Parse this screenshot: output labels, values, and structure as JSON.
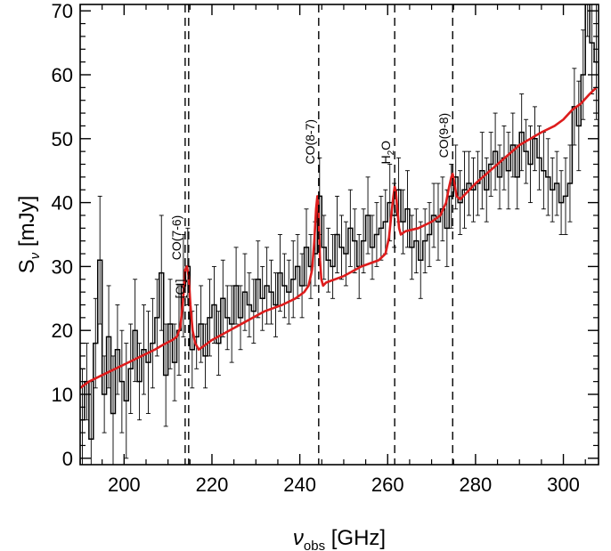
{
  "chart_data": {
    "type": "line",
    "title": "",
    "xlabel": {
      "symbol": "ν",
      "subscript": "obs",
      "unit": " [GHz]"
    },
    "ylabel": {
      "symbol": "S",
      "subscript": "ν",
      "unit": " [mJy]"
    },
    "xlim": [
      190,
      308
    ],
    "ylim": [
      -1,
      71
    ],
    "xticks": [
      200,
      220,
      240,
      260,
      280,
      300
    ],
    "yticks": [
      0,
      10,
      20,
      30,
      40,
      50,
      60,
      70
    ],
    "grid": false,
    "legend": "none",
    "colors": {
      "model": "#dd1c1c",
      "data": "#000000"
    },
    "line_markers": [
      {
        "name": "CO(7-6)",
        "main": "CO(7-6)",
        "sub": "",
        "tail": "",
        "x": 213.9,
        "label_y": 31
      },
      {
        "name": "[CI]",
        "main": "[CI]",
        "sub": "",
        "tail": "",
        "x": 214.7,
        "label_y": 25
      },
      {
        "name": "CO(8-7)",
        "main": "CO(8-7)",
        "sub": "",
        "tail": "",
        "x": 244.3,
        "label_y": 46
      },
      {
        "name": "H2O",
        "main": "H",
        "sub": "2",
        "tail": "O",
        "x": 261.6,
        "label_y": 46
      },
      {
        "name": "CO(9-8)",
        "main": "CO(9-8)",
        "sub": "",
        "tail": "",
        "x": 274.8,
        "label_y": 47
      }
    ],
    "series": [
      {
        "kind": "model",
        "x": [
          190,
          192,
          195,
          198,
          201,
          204,
          207,
          209,
          211,
          212,
          212.8,
          213.4,
          213.9,
          214.3,
          214.7,
          215.1,
          215.6,
          216.2,
          217,
          220,
          224,
          228,
          232,
          236,
          239,
          241,
          242,
          242.8,
          243.3,
          243.7,
          244.0,
          244.3,
          244.6,
          244.9,
          245.3,
          246,
          250,
          254,
          258,
          259.5,
          260.3,
          260.9,
          261.3,
          261.6,
          261.9,
          262.2,
          262.6,
          263,
          264,
          267,
          270,
          272,
          273.3,
          274,
          274.5,
          274.8,
          275.2,
          275.7,
          276.5,
          280,
          285,
          290,
          295,
          298,
          300,
          302,
          304,
          306,
          307.5
        ],
        "y": [
          11.0,
          12.0,
          13.0,
          14.0,
          15.0,
          16.0,
          17.0,
          17.8,
          18.5,
          19.0,
          20.5,
          24.5,
          29.5,
          30.0,
          28.5,
          24.0,
          20.0,
          18.0,
          17.0,
          18.5,
          20.0,
          21.5,
          23.0,
          24.0,
          25.0,
          26.0,
          27.0,
          29.5,
          34.0,
          39.0,
          41.0,
          38.0,
          31.0,
          28.0,
          27.0,
          27.5,
          28.5,
          30.0,
          31.0,
          32.0,
          34.5,
          38.5,
          41.0,
          42.5,
          41.5,
          39.0,
          36.0,
          35.0,
          35.5,
          36.0,
          37.0,
          38.0,
          40.0,
          42.5,
          44.0,
          44.5,
          43.0,
          41.0,
          40.5,
          43.0,
          46.0,
          49.0,
          51.0,
          52.0,
          53.0,
          54.5,
          55.5,
          57.0,
          58.0
        ]
      },
      {
        "kind": "data",
        "x": [
          190.5,
          191.5,
          192.5,
          193.5,
          194.5,
          195.5,
          196.5,
          197.5,
          198.5,
          199.5,
          200.5,
          201.5,
          202.5,
          203.5,
          204.5,
          205.5,
          206.5,
          207.5,
          208.5,
          209.5,
          210.5,
          211.5,
          212.5,
          213.5,
          214.5,
          215.5,
          216.5,
          217.5,
          218.5,
          219.5,
          220.5,
          221.5,
          222.5,
          223.5,
          224.5,
          225.5,
          226.5,
          227.5,
          228.5,
          229.5,
          230.5,
          231.5,
          232.5,
          233.5,
          234.5,
          235.5,
          236.5,
          237.5,
          238.5,
          239.5,
          240.5,
          241.5,
          242.5,
          243.5,
          244.5,
          245.5,
          246.5,
          247.5,
          248.5,
          249.5,
          250.5,
          251.5,
          252.5,
          253.5,
          254.5,
          255.5,
          256.5,
          257.5,
          258.5,
          259.5,
          260.5,
          261.5,
          262.5,
          263.5,
          264.5,
          265.5,
          266.5,
          267.5,
          268.5,
          269.5,
          270.5,
          271.5,
          272.5,
          273.5,
          274.5,
          275.5,
          276.5,
          277.5,
          278.5,
          279.5,
          280.5,
          281.5,
          282.5,
          283.5,
          284.5,
          285.5,
          286.5,
          287.5,
          288.5,
          289.5,
          290.5,
          291.5,
          292.5,
          293.5,
          294.5,
          295.5,
          296.5,
          297.5,
          298.5,
          299.5,
          300.5,
          301.5,
          302.5,
          303.5,
          304.5,
          305.5,
          306.5,
          307.5
        ],
        "y": [
          6,
          12,
          3,
          18,
          31,
          10,
          19,
          7,
          17,
          12,
          9,
          14,
          20,
          12,
          17,
          15,
          18,
          22,
          29,
          13,
          21,
          15,
          20,
          27,
          30,
          17,
          19,
          21,
          16,
          22,
          24,
          18,
          25,
          22,
          21,
          27,
          22,
          26,
          24,
          23,
          28,
          25,
          27,
          26,
          24,
          29,
          27,
          26,
          28,
          30,
          27,
          33,
          30,
          32,
          41,
          33,
          31,
          30,
          35,
          33,
          32,
          36,
          34,
          30,
          34,
          38,
          33,
          35,
          36,
          37,
          40,
          38,
          42,
          37,
          39,
          33,
          34,
          31,
          34,
          35,
          38,
          37,
          39,
          36,
          41,
          44,
          40,
          42,
          43,
          42,
          43,
          45,
          42,
          46,
          48,
          44,
          47,
          45,
          49,
          44,
          51,
          48,
          46,
          50,
          47,
          45,
          44,
          42,
          43,
          40,
          41,
          43,
          55,
          52,
          60,
          74,
          65,
          62
        ],
        "err": [
          8,
          6,
          9,
          7,
          10,
          6,
          8,
          9,
          7,
          8,
          9,
          7,
          8,
          6,
          7,
          8,
          7,
          6,
          9,
          8,
          7,
          6,
          7,
          8,
          6,
          6,
          5,
          6,
          5,
          6,
          6,
          5,
          6,
          5,
          6,
          6,
          5,
          6,
          5,
          5,
          6,
          5,
          6,
          5,
          5,
          6,
          5,
          5,
          6,
          5,
          5,
          6,
          5,
          5,
          6,
          5,
          5,
          5,
          6,
          5,
          5,
          6,
          5,
          5,
          5,
          6,
          5,
          5,
          5,
          5,
          6,
          5,
          5,
          5,
          6,
          5,
          5,
          6,
          5,
          5,
          5,
          6,
          5,
          6,
          5,
          5,
          5,
          6,
          5,
          5,
          5,
          6,
          5,
          5,
          6,
          5,
          5,
          6,
          5,
          5,
          6,
          5,
          6,
          5,
          5,
          6,
          6,
          5,
          5,
          5,
          6,
          6,
          6,
          7,
          7,
          8,
          8,
          9
        ]
      }
    ]
  }
}
